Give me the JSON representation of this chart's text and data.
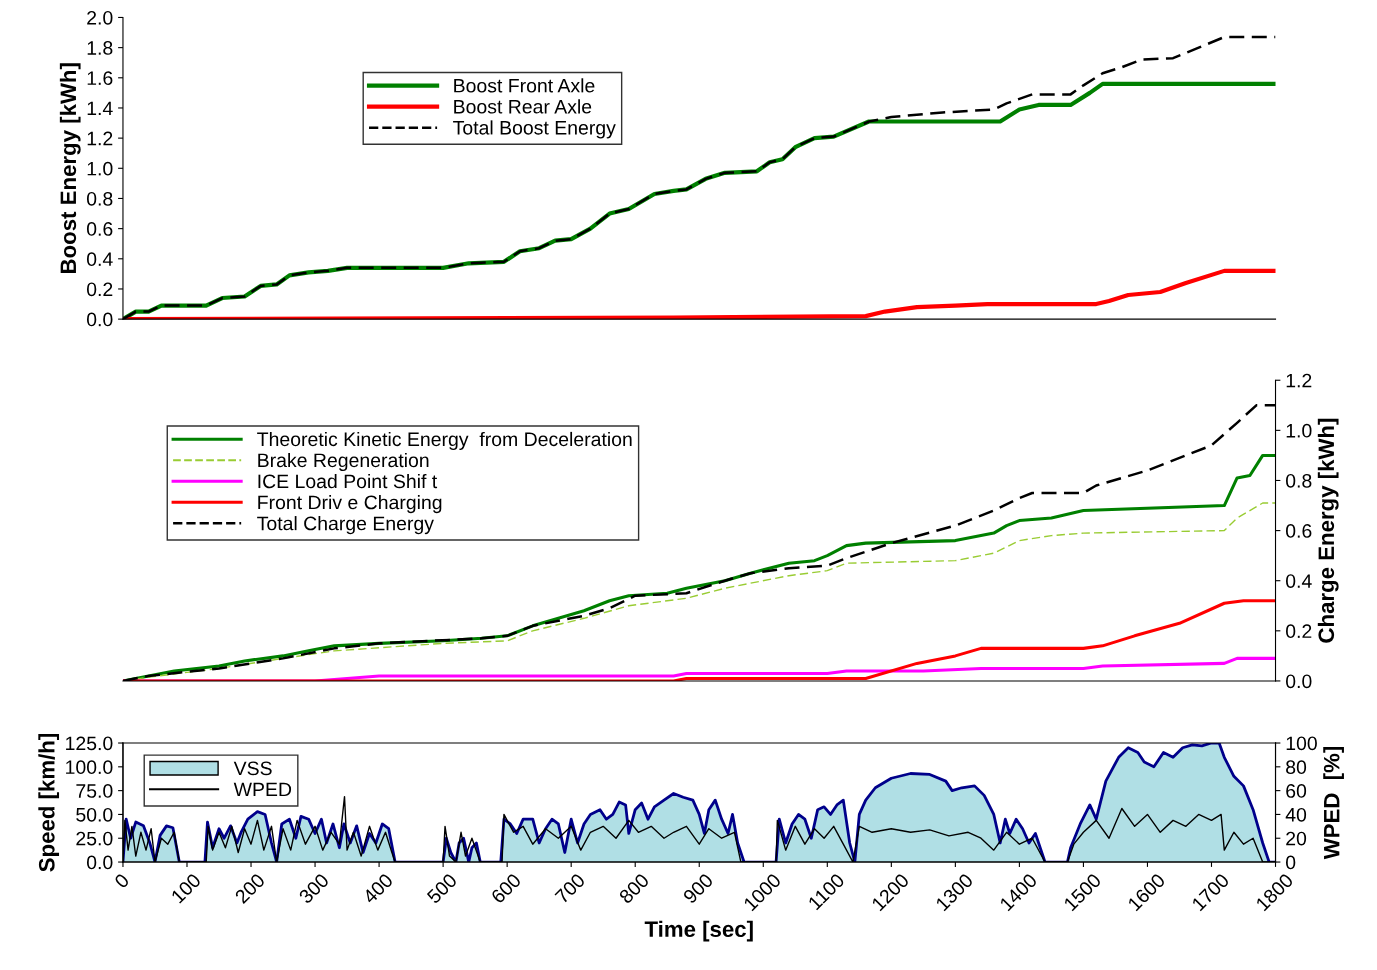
{
  "chart_data": [
    {
      "type": "line",
      "ylabel": "Boost Energy [kWh]",
      "xlim": [
        0,
        1800
      ],
      "ylim": [
        0,
        2.0
      ],
      "yticks": [
        {
          "value": 0,
          "label": "0.0"
        },
        {
          "value": 0.2,
          "label": "0.2"
        },
        {
          "value": 0.4,
          "label": "0.4"
        },
        {
          "value": 0.6,
          "label": "0.6"
        },
        {
          "value": 0.8,
          "label": "0.8"
        },
        {
          "value": 1.0,
          "label": "1.0"
        },
        {
          "value": 1.2,
          "label": "1.2"
        },
        {
          "value": 1.4,
          "label": "1.4"
        },
        {
          "value": 1.6,
          "label": "1.6"
        },
        {
          "value": 1.8,
          "label": "1.8"
        },
        {
          "value": 2.0,
          "label": "2.0"
        }
      ],
      "tick_labels": "y",
      "legend": "top left",
      "grid": false,
      "series": [
        {
          "name": "Boost Front Axle",
          "color": "#008000",
          "line_style": "solid",
          "x": [
            0,
            20,
            40,
            60,
            130,
            155,
            190,
            215,
            240,
            260,
            290,
            320,
            350,
            500,
            540,
            595,
            620,
            650,
            675,
            700,
            730,
            760,
            790,
            830,
            860,
            880,
            910,
            940,
            990,
            1010,
            1030,
            1050,
            1080,
            1110,
            1165,
            1370,
            1400,
            1430,
            1480,
            1510,
            1530,
            1800
          ],
          "values": [
            0,
            0.05,
            0.05,
            0.09,
            0.09,
            0.14,
            0.15,
            0.22,
            0.23,
            0.29,
            0.31,
            0.32,
            0.34,
            0.34,
            0.37,
            0.38,
            0.45,
            0.47,
            0.52,
            0.53,
            0.6,
            0.7,
            0.73,
            0.83,
            0.85,
            0.86,
            0.93,
            0.97,
            0.98,
            1.04,
            1.06,
            1.14,
            1.2,
            1.21,
            1.31,
            1.31,
            1.39,
            1.42,
            1.42,
            1.5,
            1.56,
            1.56
          ]
        },
        {
          "name": "Boost Rear Axle",
          "color": "#ff0000",
          "line_style": "solid",
          "x": [
            0,
            860,
            1160,
            1190,
            1240,
            1300,
            1350,
            1520,
            1540,
            1570,
            1620,
            1660,
            1720,
            1800
          ],
          "values": [
            0,
            0.01,
            0.02,
            0.05,
            0.08,
            0.09,
            0.1,
            0.1,
            0.12,
            0.16,
            0.18,
            0.24,
            0.32,
            0.32
          ]
        },
        {
          "name": "Total Boost Energy",
          "color": "#000000",
          "line_style": "dashed",
          "x": [
            0,
            20,
            40,
            60,
            130,
            155,
            190,
            215,
            240,
            260,
            290,
            320,
            350,
            500,
            540,
            595,
            620,
            650,
            675,
            700,
            730,
            760,
            790,
            830,
            860,
            880,
            910,
            940,
            990,
            1010,
            1030,
            1050,
            1080,
            1110,
            1165,
            1200,
            1280,
            1360,
            1380,
            1400,
            1420,
            1480,
            1500,
            1530,
            1560,
            1590,
            1640,
            1680,
            1720,
            1800
          ],
          "values": [
            0,
            0.05,
            0.05,
            0.09,
            0.09,
            0.14,
            0.15,
            0.22,
            0.23,
            0.29,
            0.31,
            0.32,
            0.34,
            0.34,
            0.37,
            0.38,
            0.45,
            0.47,
            0.52,
            0.53,
            0.6,
            0.7,
            0.73,
            0.83,
            0.85,
            0.86,
            0.93,
            0.97,
            0.98,
            1.04,
            1.06,
            1.14,
            1.2,
            1.21,
            1.31,
            1.34,
            1.37,
            1.39,
            1.43,
            1.46,
            1.49,
            1.49,
            1.55,
            1.63,
            1.67,
            1.72,
            1.73,
            1.8,
            1.87,
            1.87
          ]
        }
      ]
    },
    {
      "type": "line",
      "y2label": "Charge Energy [kWh]",
      "xlim": [
        0,
        1800
      ],
      "y2lim": [
        0,
        1.2
      ],
      "y2ticks": [
        {
          "value": 0,
          "label": "0.0"
        },
        {
          "value": 0.2,
          "label": "0.2"
        },
        {
          "value": 0.4,
          "label": "0.4"
        },
        {
          "value": 0.6,
          "label": "0.6"
        },
        {
          "value": 0.8,
          "label": "0.8"
        },
        {
          "value": 1.0,
          "label": "1.0"
        },
        {
          "value": 1.2,
          "label": "1.2"
        }
      ],
      "tick_labels": "y",
      "legend": "top left",
      "grid": false,
      "series": [
        {
          "name": "Theoretic Kinetic Energy  from Deceleration",
          "color": "#008000",
          "line_style": "solid",
          "axis": "y2",
          "x": [
            0,
            40,
            80,
            150,
            190,
            250,
            290,
            330,
            400,
            500,
            560,
            600,
            640,
            680,
            720,
            760,
            790,
            850,
            880,
            940,
            980,
            1040,
            1080,
            1100,
            1130,
            1160,
            1300,
            1360,
            1380,
            1400,
            1450,
            1500,
            1720,
            1740,
            1760,
            1780,
            1800
          ],
          "values": [
            0,
            0.02,
            0.04,
            0.06,
            0.08,
            0.1,
            0.12,
            0.14,
            0.15,
            0.16,
            0.17,
            0.18,
            0.22,
            0.25,
            0.28,
            0.32,
            0.34,
            0.35,
            0.37,
            0.4,
            0.43,
            0.47,
            0.48,
            0.5,
            0.54,
            0.55,
            0.56,
            0.59,
            0.62,
            0.64,
            0.65,
            0.68,
            0.7,
            0.81,
            0.82,
            0.9,
            0.9
          ]
        },
        {
          "name": "Brake Regeneration",
          "color": "#99cc33",
          "line_style": "dashed",
          "axis": "y2",
          "x": [
            0,
            40,
            150,
            250,
            330,
            500,
            600,
            640,
            720,
            790,
            880,
            940,
            1040,
            1100,
            1130,
            1300,
            1360,
            1400,
            1450,
            1500,
            1720,
            1740,
            1780,
            1800
          ],
          "values": [
            0,
            0.015,
            0.05,
            0.09,
            0.12,
            0.15,
            0.16,
            0.2,
            0.25,
            0.3,
            0.33,
            0.37,
            0.42,
            0.44,
            0.47,
            0.48,
            0.51,
            0.56,
            0.58,
            0.59,
            0.6,
            0.65,
            0.71,
            0.71
          ]
        },
        {
          "name": "ICE Load Point Shif t",
          "color": "#ff00ff",
          "line_style": "solid",
          "axis": "y2",
          "x": [
            0,
            300,
            400,
            860,
            880,
            1100,
            1130,
            1250,
            1340,
            1500,
            1530,
            1720,
            1740,
            1800
          ],
          "values": [
            0,
            0,
            0.02,
            0.02,
            0.03,
            0.03,
            0.04,
            0.04,
            0.05,
            0.05,
            0.06,
            0.07,
            0.09,
            0.09
          ]
        },
        {
          "name": "Front Driv e Charging",
          "color": "#ff0000",
          "line_style": "solid",
          "axis": "y2",
          "x": [
            0,
            860,
            880,
            1160,
            1240,
            1300,
            1340,
            1500,
            1530,
            1580,
            1650,
            1720,
            1750,
            1800
          ],
          "values": [
            0,
            0,
            0.01,
            0.01,
            0.07,
            0.1,
            0.13,
            0.13,
            0.14,
            0.18,
            0.23,
            0.31,
            0.32,
            0.32
          ]
        },
        {
          "name": "Total Charge Energy",
          "color": "#000000",
          "line_style": "dashed",
          "axis": "y2",
          "x": [
            0,
            40,
            150,
            250,
            330,
            400,
            560,
            600,
            640,
            720,
            760,
            800,
            880,
            940,
            980,
            1040,
            1100,
            1130,
            1200,
            1300,
            1360,
            1400,
            1420,
            1500,
            1520,
            1600,
            1700,
            1740,
            1770,
            1800
          ],
          "values": [
            0,
            0.02,
            0.05,
            0.09,
            0.13,
            0.15,
            0.17,
            0.18,
            0.22,
            0.26,
            0.29,
            0.34,
            0.35,
            0.4,
            0.43,
            0.45,
            0.46,
            0.49,
            0.55,
            0.62,
            0.68,
            0.73,
            0.75,
            0.75,
            0.78,
            0.84,
            0.94,
            1.03,
            1.1,
            1.1
          ]
        }
      ]
    },
    {
      "type": "line",
      "xlabel": "Time [sec]",
      "ylabel": "Speed [km/h]",
      "y2label": "WPED  [%]",
      "xlim": [
        0,
        1800
      ],
      "xticks": [
        0,
        100,
        200,
        300,
        400,
        500,
        600,
        700,
        800,
        900,
        1000,
        1100,
        1200,
        1300,
        1400,
        1500,
        1600,
        1700,
        1800
      ],
      "ylim": [
        0,
        125
      ],
      "yticks": [
        {
          "value": 0,
          "label": "0.0"
        },
        {
          "value": 25,
          "label": "25.0"
        },
        {
          "value": 50,
          "label": "50.0"
        },
        {
          "value": 75,
          "label": "75.0"
        },
        {
          "value": 100,
          "label": "100.0"
        },
        {
          "value": 125,
          "label": "125.0"
        }
      ],
      "y2lim": [
        0,
        100
      ],
      "y2ticks": [
        0,
        20,
        40,
        60,
        80,
        100
      ],
      "legend": "top left",
      "grid": false,
      "series": [
        {
          "name": "VSS",
          "type": "area",
          "color": "#b0dfe5",
          "x": [
            0,
            5,
            12,
            20,
            32,
            42,
            50,
            58,
            68,
            78,
            88,
            128,
            132,
            140,
            150,
            158,
            168,
            178,
            185,
            195,
            210,
            222,
            232,
            240,
            248,
            260,
            270,
            278,
            290,
            300,
            310,
            318,
            328,
            338,
            345,
            355,
            365,
            375,
            385,
            395,
            405,
            415,
            425,
            500,
            505,
            512,
            520,
            525,
            532,
            540,
            545,
            552,
            558,
            590,
            595,
            605,
            615,
            625,
            640,
            650,
            660,
            670,
            680,
            690,
            700,
            710,
            720,
            730,
            745,
            755,
            765,
            775,
            785,
            790,
            800,
            810,
            820,
            830,
            845,
            860,
            875,
            890,
            900,
            908,
            915,
            925,
            935,
            945,
            952,
            960,
            970,
            1020,
            1025,
            1035,
            1045,
            1055,
            1065,
            1075,
            1085,
            1095,
            1105,
            1115,
            1125,
            1135,
            1143,
            1150,
            1160,
            1175,
            1200,
            1230,
            1260,
            1285,
            1295,
            1310,
            1330,
            1345,
            1360,
            1370,
            1378,
            1385,
            1395,
            1405,
            1415,
            1425,
            1440,
            1475,
            1480,
            1495,
            1510,
            1520,
            1535,
            1555,
            1570,
            1585,
            1595,
            1610,
            1625,
            1640,
            1655,
            1670,
            1685,
            1700,
            1712,
            1720,
            1735,
            1750,
            1765,
            1780,
            1790,
            1800
          ],
          "values": [
            0,
            45,
            25,
            42,
            38,
            20,
            0,
            28,
            38,
            36,
            0,
            0,
            42,
            15,
            35,
            25,
            38,
            20,
            32,
            45,
            53,
            50,
            20,
            0,
            40,
            45,
            25,
            48,
            45,
            30,
            45,
            20,
            40,
            15,
            40,
            20,
            38,
            10,
            30,
            20,
            40,
            35,
            0,
            0,
            25,
            10,
            0,
            20,
            25,
            0,
            15,
            20,
            0,
            0,
            45,
            40,
            30,
            45,
            45,
            20,
            35,
            45,
            40,
            10,
            45,
            20,
            40,
            50,
            55,
            45,
            50,
            63,
            60,
            30,
            55,
            62,
            45,
            58,
            65,
            72,
            68,
            65,
            50,
            30,
            55,
            65,
            45,
            30,
            50,
            20,
            0,
            0,
            45,
            20,
            40,
            50,
            45,
            25,
            55,
            58,
            50,
            60,
            65,
            20,
            0,
            50,
            65,
            78,
            88,
            93,
            92,
            85,
            75,
            78,
            80,
            70,
            50,
            20,
            45,
            30,
            45,
            35,
            20,
            30,
            0,
            0,
            15,
            40,
            60,
            45,
            85,
            110,
            120,
            115,
            105,
            100,
            115,
            110,
            120,
            123,
            122,
            125,
            125,
            110,
            90,
            80,
            55,
            20,
            0,
            0
          ]
        },
        {
          "name": "WPED",
          "type": "line",
          "axis": "y2",
          "color": "#000000",
          "x": [
            0,
            3,
            8,
            14,
            20,
            28,
            36,
            44,
            50,
            60,
            70,
            80,
            88,
            130,
            133,
            140,
            150,
            160,
            170,
            180,
            190,
            200,
            210,
            220,
            232,
            240,
            250,
            262,
            272,
            285,
            300,
            312,
            325,
            338,
            346,
            350,
            360,
            372,
            385,
            398,
            410,
            420,
            425,
            500,
            503,
            510,
            520,
            528,
            535,
            545,
            558,
            592,
            595,
            610,
            625,
            640,
            660,
            680,
            700,
            715,
            730,
            750,
            770,
            790,
            805,
            825,
            845,
            860,
            880,
            900,
            915,
            935,
            955,
            965,
            1020,
            1022,
            1035,
            1050,
            1065,
            1080,
            1095,
            1110,
            1125,
            1140,
            1150,
            1170,
            1200,
            1230,
            1260,
            1290,
            1320,
            1340,
            1360,
            1380,
            1400,
            1420,
            1440,
            1475,
            1485,
            1500,
            1520,
            1540,
            1560,
            1580,
            1600,
            1620,
            1640,
            1660,
            1680,
            1700,
            1715,
            1720,
            1735,
            1750,
            1765,
            1780,
            1800
          ],
          "values": [
            0,
            35,
            10,
            30,
            5,
            25,
            10,
            28,
            0,
            20,
            15,
            25,
            0,
            0,
            30,
            10,
            25,
            12,
            30,
            8,
            28,
            15,
            35,
            10,
            30,
            0,
            28,
            10,
            35,
            15,
            30,
            10,
            25,
            15,
            55,
            10,
            25,
            5,
            30,
            10,
            25,
            8,
            0,
            0,
            30,
            5,
            0,
            25,
            5,
            20,
            0,
            0,
            40,
            25,
            30,
            15,
            28,
            20,
            30,
            10,
            25,
            30,
            20,
            35,
            25,
            30,
            20,
            25,
            30,
            15,
            28,
            20,
            25,
            0,
            0,
            35,
            10,
            30,
            15,
            28,
            20,
            30,
            15,
            0,
            30,
            25,
            28,
            25,
            27,
            22,
            25,
            20,
            10,
            25,
            15,
            20,
            0,
            0,
            15,
            25,
            35,
            20,
            45,
            30,
            40,
            25,
            35,
            30,
            40,
            35,
            40,
            10,
            25,
            15,
            20,
            0,
            0
          ]
        }
      ]
    }
  ]
}
